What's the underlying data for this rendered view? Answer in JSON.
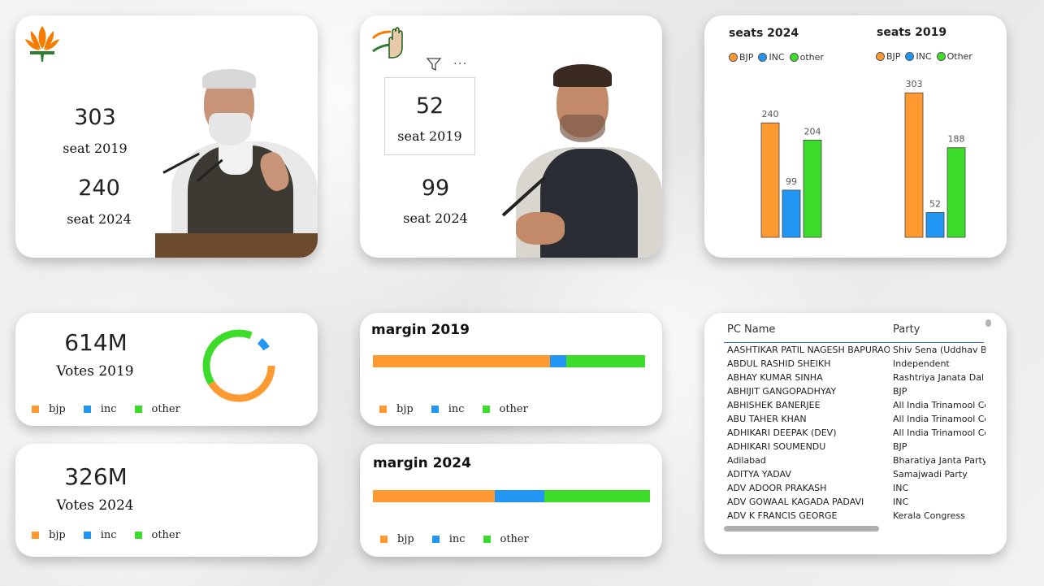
{
  "bjp_card": {
    "seats_2019": "303",
    "seats_2019_label": "seat 2019",
    "seats_2024": "240",
    "seats_2024_label": "seat 2024"
  },
  "inc_card": {
    "seats_2019": "52",
    "seats_2019_label": "seat 2019",
    "seats_2024": "99",
    "seats_2024_label": "seat 2024",
    "toolbar_more": "..."
  },
  "chart_data": [
    {
      "type": "bar",
      "title": "seats 2024",
      "categories": [
        "BJP",
        "INC",
        "other"
      ],
      "values": [
        240,
        99,
        204
      ],
      "colors": [
        "#ff9a33",
        "#2196f3",
        "#3ddc2b"
      ],
      "legend": [
        "BJP",
        "INC",
        "other"
      ],
      "ylim": [
        0,
        300
      ]
    },
    {
      "type": "bar",
      "title": "seats 2019",
      "categories": [
        "BJP",
        "INC",
        "Other"
      ],
      "values": [
        303,
        52,
        188
      ],
      "colors": [
        "#ff9a33",
        "#2196f3",
        "#3ddc2b"
      ],
      "legend": [
        "BJP",
        "INC",
        "Other"
      ],
      "ylim": [
        0,
        300
      ]
    }
  ],
  "votes_2019": {
    "value": "614M",
    "label": "Votes 2019",
    "donut": [
      0.55,
      0.05,
      0.4
    ]
  },
  "votes_2024": {
    "value": "326M",
    "label": "Votes 2024"
  },
  "legend_lower": [
    "bjp",
    "inc",
    "other"
  ],
  "margin_2019": {
    "title": "margin 2019",
    "shares": [
      0.65,
      0.06,
      0.29
    ]
  },
  "margin_2024": {
    "title": "margin 2024",
    "shares": [
      0.44,
      0.18,
      0.38
    ]
  },
  "colors": {
    "bjp": "#ff9a33",
    "inc": "#2196f3",
    "other": "#3ddc2b"
  },
  "table": {
    "headers": [
      "PC Name",
      "Party"
    ],
    "rows": [
      [
        "AASHTIKAR PATIL NAGESH BAPURAO",
        "Shiv Sena (Uddhav Bala"
      ],
      [
        "ABDUL RASHID SHEIKH",
        "Independent"
      ],
      [
        "ABHAY KUMAR SINHA",
        "Rashtriya Janata Dal"
      ],
      [
        "ABHIJIT GANGOPADHYAY",
        "BJP"
      ],
      [
        "ABHISHEK BANERJEE",
        "All India Trinamool Cong"
      ],
      [
        "ABU TAHER KHAN",
        "All India Trinamool Cong"
      ],
      [
        "ADHIKARI DEEPAK (DEV)",
        "All India Trinamool Cong"
      ],
      [
        "ADHIKARI SOUMENDU",
        "BJP"
      ],
      [
        "Adilabad",
        "Bharatiya Janta Party"
      ],
      [
        "ADITYA YADAV",
        "Samajwadi Party"
      ],
      [
        "ADV ADOOR PRAKASH",
        "INC"
      ],
      [
        "ADV GOWAAL KAGADA PADAVI",
        "INC"
      ],
      [
        "ADV K FRANCIS GEORGE",
        "Kerala Congress"
      ]
    ]
  }
}
